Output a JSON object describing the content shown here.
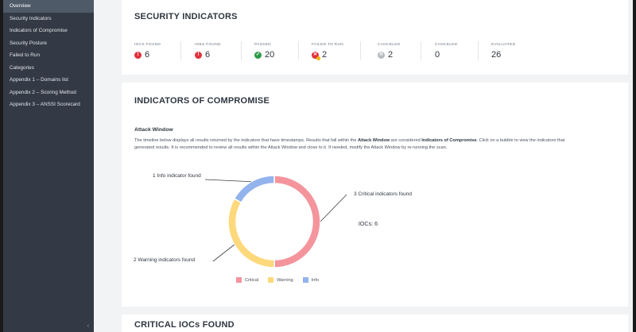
{
  "sidebar": {
    "items": [
      {
        "label": "Overview",
        "active": true
      },
      {
        "label": "Security Indicators",
        "active": false
      },
      {
        "label": "Indicators of Compromise",
        "active": false
      },
      {
        "label": "Security Posture",
        "active": false
      },
      {
        "label": "Failed to Run",
        "active": false
      },
      {
        "label": "Categories",
        "active": false
      },
      {
        "label": "Appendix 1 – Domains list",
        "active": false
      },
      {
        "label": "Appendix 2 – Scoring Method",
        "active": false
      },
      {
        "label": "Appendix 3 – ANSSI Scorecard",
        "active": false
      }
    ],
    "collapse_glyph": "‹"
  },
  "security_indicators": {
    "title": "SECURITY INDICATORS",
    "stats": [
      {
        "label": "IOCs FOUND",
        "value": "6",
        "icon": "critical-icon",
        "color": "#e0323b"
      },
      {
        "label": "IOEs FOUND",
        "value": "6",
        "icon": "critical-icon",
        "color": "#e0323b"
      },
      {
        "label": "PASSED",
        "value": "20",
        "icon": "check-icon",
        "color": "#2d9b47"
      },
      {
        "label": "FAILED TO RUN",
        "value": "2",
        "icon": "failed-icon",
        "color": "#e0323b"
      },
      {
        "label": "CANCELED",
        "value": "2",
        "icon": "canceled-icon",
        "color": "#9aa0a6"
      },
      {
        "label": "CANCELED",
        "value": "0",
        "icon": "",
        "color": ""
      },
      {
        "label": "EVALUATED",
        "value": "26",
        "icon": "",
        "color": ""
      }
    ]
  },
  "iocs": {
    "title": "INDICATORS OF COMPROMISE",
    "subtitle": "Attack Window",
    "desc_1": "The timeline below displays all results returned by the indicators that have timestamps. Results that fall within the ",
    "desc_bold_1": "Attack Window",
    "desc_2": " are considered ",
    "desc_bold_2": "Indicators of Compromise",
    "desc_3": ". Click on a bubble to view the indicators that generated results. It is recommended to review all results within the Attack Window and close to it. If needed, modify the Attack Window by re-running the scan."
  },
  "chart_data": {
    "type": "pie",
    "center_label": "IOCs: 6",
    "categories": [
      "Critical",
      "Warning",
      "Info"
    ],
    "values": [
      3,
      2,
      1
    ],
    "colors": [
      "#f4949c",
      "#fdd97c",
      "#93b3ed"
    ],
    "annotations": [
      {
        "text": "3 Critical indicators found",
        "category": "Critical"
      },
      {
        "text": "2 Warning indicators found",
        "category": "Warning"
      },
      {
        "text": "1 Info indicator found",
        "category": "Info"
      }
    ]
  },
  "critical_section": {
    "title": "CRITICAL IOCs FOUND"
  }
}
